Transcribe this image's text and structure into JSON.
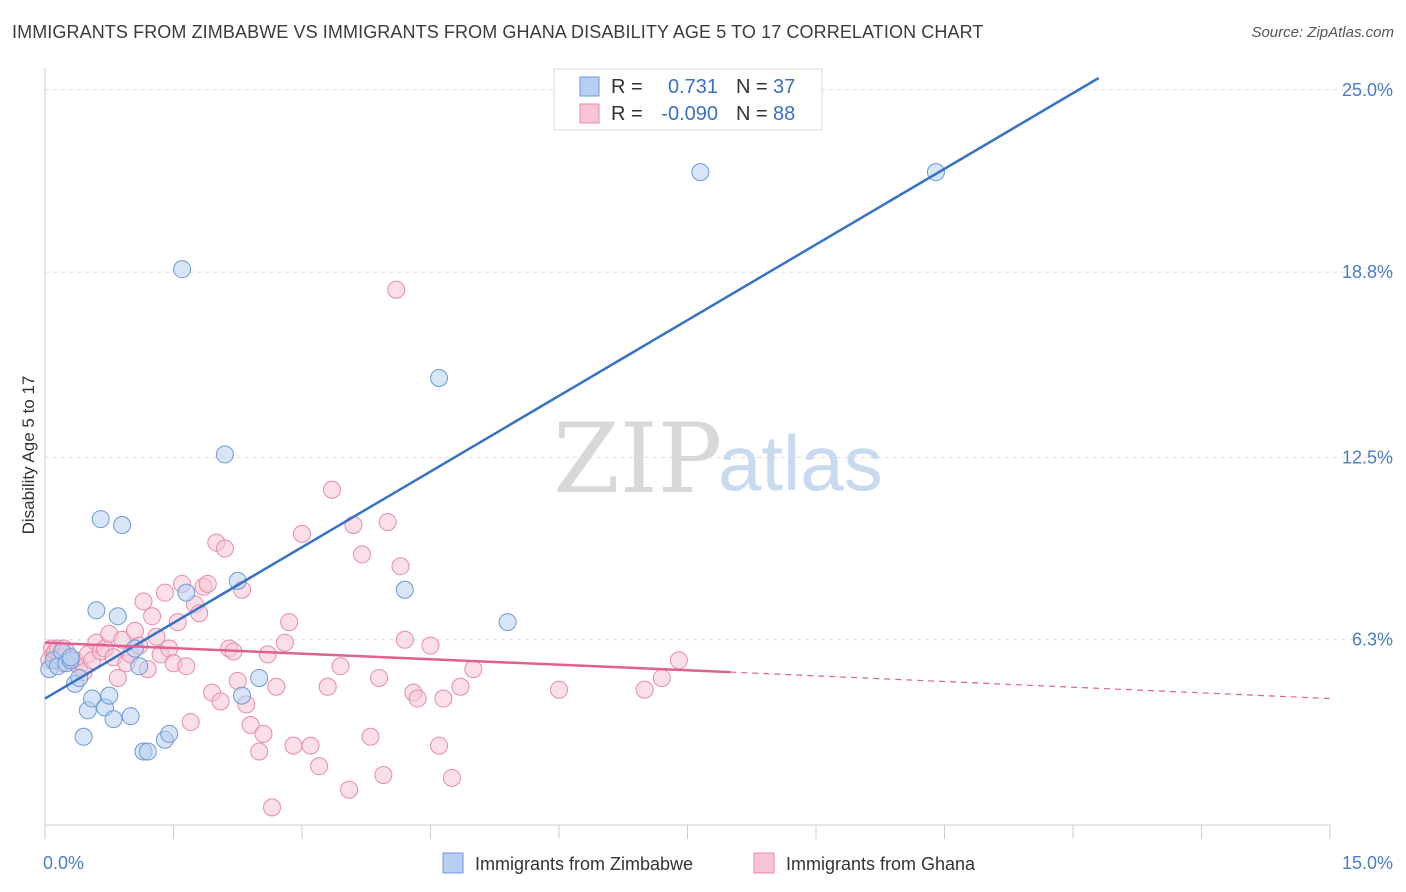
{
  "header": {
    "title": "IMMIGRANTS FROM ZIMBABWE VS IMMIGRANTS FROM GHANA DISABILITY AGE 5 TO 17 CORRELATION CHART",
    "source": "Source: ZipAtlas.com"
  },
  "watermark": {
    "zip": "ZIP",
    "atlas": "atlas"
  },
  "legend": {
    "rows": [
      {
        "r_label": "R =",
        "r_value": "0.731",
        "n_label": "N =",
        "n_value": "37",
        "color": "#8ab4e8"
      },
      {
        "r_label": "R =",
        "r_value": "-0.090",
        "n_label": "N =",
        "n_value": "88",
        "color": "#f4a5c0"
      }
    ]
  },
  "colors": {
    "zimbabwe_fill": "#b7cff0",
    "zimbabwe_stroke": "#6b9ad8",
    "zimbabwe_line": "#3672c8",
    "ghana_fill": "#f7c4d5",
    "ghana_stroke": "#e88aac",
    "ghana_line": "#e0608f",
    "grid": "#dddddd",
    "tick_label": "#4a7cc9"
  },
  "chart_data": {
    "type": "scatter",
    "title": "IMMIGRANTS FROM ZIMBABWE VS IMMIGRANTS FROM GHANA DISABILITY AGE 5 TO 17 CORRELATION CHART",
    "xlabel": "",
    "ylabel": "Disability Age 5 to 17",
    "xlim": [
      0,
      15
    ],
    "ylim": [
      0,
      25.4
    ],
    "x_tick_labels": [
      "0.0%",
      "15.0%"
    ],
    "y_ticks": [
      6.3,
      12.5,
      18.8,
      25.0
    ],
    "y_tick_labels": [
      "6.3%",
      "12.5%",
      "18.8%",
      "25.0%"
    ],
    "grid": true,
    "legend_position": "top-center",
    "series": [
      {
        "name": "Immigrants from Zimbabwe",
        "x": [
          0.05,
          0.1,
          0.15,
          0.2,
          0.25,
          0.3,
          0.35,
          0.4,
          0.45,
          0.5,
          0.55,
          0.6,
          0.65,
          0.7,
          0.75,
          0.8,
          0.85,
          0.9,
          1.0,
          1.05,
          1.1,
          1.15,
          1.2,
          1.4,
          1.45,
          1.6,
          1.65,
          2.1,
          2.25,
          2.3,
          2.5,
          4.2,
          4.6,
          5.4,
          7.65,
          10.4,
          0.3
        ],
        "y": [
          5.3,
          5.6,
          5.4,
          5.9,
          5.5,
          5.6,
          4.8,
          5.0,
          3.0,
          3.9,
          4.3,
          7.3,
          10.4,
          4.0,
          4.4,
          3.6,
          7.1,
          10.2,
          3.7,
          6.0,
          5.4,
          2.5,
          2.5,
          2.9,
          3.1,
          18.9,
          7.9,
          12.6,
          8.3,
          4.4,
          5.0,
          8.0,
          15.2,
          6.9,
          22.2,
          22.2,
          5.7
        ]
      },
      {
        "name": "Immigrants from Ghana",
        "x": [
          0.05,
          0.08,
          0.1,
          0.12,
          0.15,
          0.18,
          0.2,
          0.22,
          0.25,
          0.3,
          0.35,
          0.4,
          0.45,
          0.5,
          0.55,
          0.6,
          0.65,
          0.7,
          0.75,
          0.8,
          0.85,
          0.9,
          0.95,
          1.0,
          1.05,
          1.1,
          1.15,
          1.2,
          1.25,
          1.3,
          1.35,
          1.4,
          1.45,
          1.5,
          1.55,
          1.6,
          1.65,
          1.7,
          1.75,
          1.8,
          1.85,
          1.9,
          1.95,
          2.0,
          2.05,
          2.1,
          2.15,
          2.2,
          2.25,
          2.3,
          2.35,
          2.4,
          2.5,
          2.55,
          2.6,
          2.65,
          2.7,
          2.8,
          2.85,
          2.9,
          3.0,
          3.1,
          3.2,
          3.3,
          3.35,
          3.45,
          3.55,
          3.6,
          3.7,
          3.8,
          3.9,
          3.95,
          4.0,
          4.1,
          4.15,
          4.2,
          4.3,
          4.35,
          4.5,
          4.6,
          4.65,
          4.75,
          4.85,
          5.0,
          6.0,
          7.0,
          7.2,
          7.4
        ],
        "y": [
          5.6,
          6.0,
          5.8,
          5.9,
          6.0,
          5.7,
          5.5,
          6.0,
          5.9,
          5.6,
          5.6,
          5.4,
          5.2,
          5.8,
          5.6,
          6.2,
          5.9,
          6.0,
          6.5,
          5.7,
          5.0,
          6.3,
          5.5,
          5.8,
          6.6,
          6.1,
          7.6,
          5.3,
          7.1,
          6.4,
          5.8,
          7.9,
          6.0,
          5.5,
          6.9,
          8.2,
          5.4,
          3.5,
          7.5,
          7.2,
          8.1,
          8.2,
          4.5,
          9.6,
          4.2,
          9.4,
          6.0,
          5.9,
          4.9,
          8.0,
          4.1,
          3.4,
          2.5,
          3.1,
          5.8,
          0.6,
          4.7,
          6.2,
          6.9,
          2.7,
          9.9,
          2.7,
          2.0,
          4.7,
          11.4,
          5.4,
          1.2,
          10.2,
          9.2,
          3.0,
          5.0,
          1.7,
          10.3,
          18.2,
          8.8,
          6.3,
          4.5,
          4.3,
          6.1,
          2.7,
          4.3,
          1.6,
          4.7,
          5.3,
          4.6,
          4.6,
          5.0,
          5.6
        ]
      }
    ],
    "trend_lines": [
      {
        "series": "Immigrants from Zimbabwe",
        "x": [
          0.0,
          12.3
        ],
        "y": [
          4.3,
          25.4
        ]
      },
      {
        "series": "Immigrants from Ghana",
        "x": [
          0.0,
          8.0
        ],
        "y": [
          6.2,
          5.2
        ],
        "dashed_extension_to_x": 15.0,
        "dashed_end_y": 4.3
      }
    ]
  },
  "bottom_legend": {
    "items": [
      {
        "label": "Immigrants from Zimbabwe"
      },
      {
        "label": "Immigrants from Ghana"
      }
    ]
  }
}
